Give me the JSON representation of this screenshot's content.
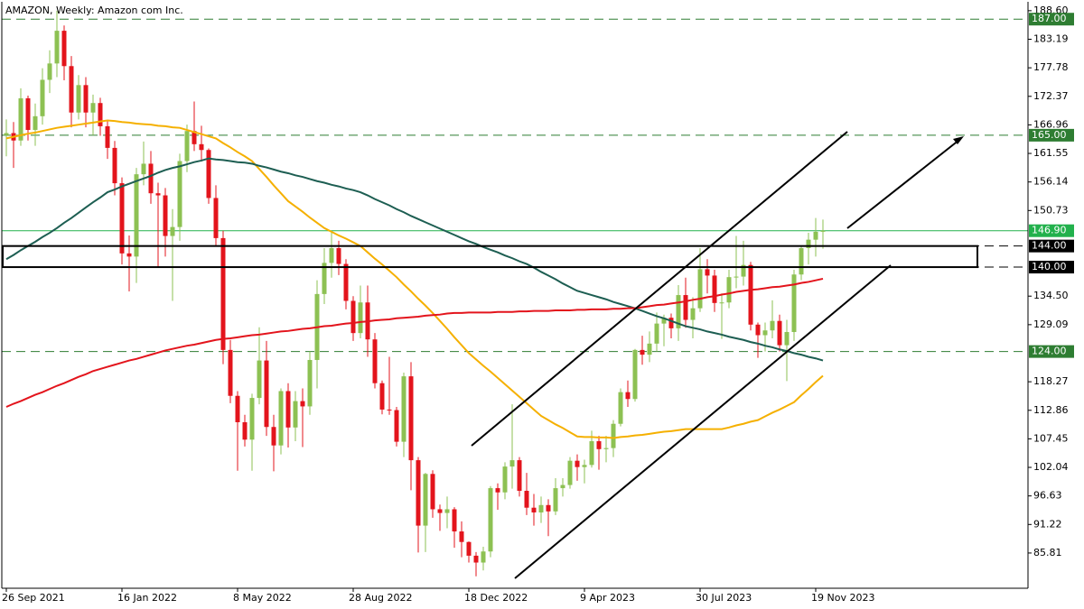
{
  "chart_data": {
    "type": "candlestick",
    "title": "AMAZON, Weekly:  Amazon com Inc.",
    "categories": [
      "26 Sep 2021",
      null,
      null,
      null,
      null,
      null,
      null,
      null,
      null,
      null,
      null,
      null,
      null,
      null,
      null,
      null,
      "16 Jan 2022",
      null,
      null,
      null,
      null,
      null,
      null,
      null,
      null,
      null,
      null,
      null,
      null,
      null,
      null,
      null,
      "8 May 2022",
      null,
      null,
      null,
      null,
      null,
      null,
      null,
      null,
      null,
      null,
      null,
      null,
      null,
      null,
      null,
      "28 Aug 2022",
      null,
      null,
      null,
      null,
      null,
      null,
      null,
      null,
      null,
      null,
      null,
      null,
      null,
      null,
      null,
      "18 Dec 2022",
      null,
      null,
      null,
      null,
      null,
      null,
      null,
      null,
      null,
      null,
      null,
      null,
      null,
      null,
      null,
      "9 Apr 2023",
      null,
      null,
      null,
      null,
      null,
      null,
      null,
      null,
      null,
      null,
      null,
      null,
      null,
      null,
      null,
      "30 Jul 2023",
      null,
      null,
      null,
      null,
      null,
      null,
      null,
      null,
      null,
      null,
      null,
      null,
      null,
      null,
      null,
      "19 Nov 2023",
      null
    ],
    "open": [
      165.0,
      165.4,
      164.0,
      172.0,
      166.0,
      168.6,
      175.5,
      178.6,
      184.8,
      178.1,
      169.3,
      174.5,
      169.3,
      171.1,
      166.7,
      162.6,
      155.9,
      142.6,
      142.0,
      157.6,
      159.6,
      154.0,
      153.6,
      145.9,
      147.6,
      160.1,
      165.8,
      163.3,
      162.2,
      153.1,
      145.5,
      124.3,
      115.6,
      110.6,
      107.3,
      115.2,
      122.3,
      109.7,
      106.2,
      116.5,
      109.6,
      114.6,
      113.6,
      122.4,
      134.9,
      140.8,
      143.6,
      140.6,
      133.6,
      127.5,
      133.3,
      126.3,
      118.0,
      113.0,
      112.9,
      106.9,
      119.3,
      103.4,
      91.0,
      100.8,
      94.1,
      93.4,
      94.1,
      89.9,
      87.9,
      85.3,
      84.0,
      86.1,
      98.1,
      97.3,
      102.2,
      103.4,
      97.6,
      94.4,
      93.5,
      94.9,
      93.7,
      98.1,
      98.7,
      103.3,
      102.1,
      102.5,
      107.0,
      105.5,
      105.7,
      110.3,
      116.3,
      115.0,
      124.3,
      123.4,
      125.5,
      129.3,
      130.4,
      128.4,
      134.7,
      130.0,
      132.2,
      139.6,
      138.4,
      133.2,
      133.3,
      138.1,
      138.2,
      140.4,
      129.1,
      127.1,
      128.0,
      129.8,
      125.2,
      127.7,
      138.6,
      143.6,
      145.2,
      146.7
    ],
    "high": [
      168.0,
      167.5,
      173.9,
      172.5,
      171.0,
      177.7,
      181.1,
      188.6,
      185.8,
      180.0,
      176.4,
      176.0,
      172.7,
      172.1,
      167.8,
      163.9,
      157.0,
      146.0,
      158.8,
      163.8,
      162.0,
      156.0,
      155.0,
      151.0,
      161.5,
      167.0,
      171.4,
      166.8,
      162.5,
      155.5,
      146.9,
      126.2,
      116.5,
      112.0,
      116.0,
      128.6,
      126.0,
      112.0,
      117.0,
      118.0,
      116.5,
      117.0,
      124.0,
      137.5,
      143.6,
      146.6,
      145.0,
      141.5,
      134.5,
      136.5,
      136.5,
      127.5,
      118.5,
      123.0,
      113.5,
      120.0,
      122.0,
      104.0,
      101.0,
      101.5,
      95.0,
      96.5,
      94.5,
      91.8,
      88.0,
      86.0,
      87.0,
      98.5,
      99.0,
      103.0,
      114.0,
      104.0,
      101.0,
      97.0,
      96.5,
      96.0,
      100.0,
      100.0,
      104.0,
      104.5,
      103.5,
      109.0,
      108.0,
      108.0,
      111.0,
      117.0,
      118.5,
      124.5,
      127.0,
      127.8,
      131.4,
      131.0,
      131.2,
      136.6,
      138.0,
      134.3,
      143.6,
      141.5,
      139.5,
      135.0,
      139.5,
      145.9,
      145.0,
      141.0,
      129.5,
      129.5,
      133.7,
      131.0,
      130.0,
      139.5,
      144.0,
      146.5,
      149.3,
      149.0
    ],
    "low": [
      161.0,
      158.8,
      163.0,
      164.0,
      163.0,
      167.0,
      173.0,
      176.0,
      175.4,
      166.5,
      168.0,
      166.5,
      165.0,
      164.9,
      160.5,
      153.6,
      140.5,
      135.4,
      137.0,
      155.5,
      152.0,
      140.0,
      142.0,
      133.6,
      145.0,
      158.0,
      162.0,
      160.0,
      152.0,
      144.0,
      121.6,
      114.2,
      101.4,
      106.0,
      101.4,
      114.0,
      108.0,
      101.3,
      104.5,
      105.8,
      107.0,
      105.9,
      112.0,
      117.0,
      133.0,
      138.0,
      138.5,
      132.0,
      126.0,
      126.5,
      123.0,
      117.0,
      112.1,
      112.0,
      106.0,
      104.0,
      97.7,
      85.9,
      86.0,
      92.5,
      90.0,
      90.5,
      86.8,
      85.0,
      84.0,
      81.4,
      82.5,
      85.0,
      94.0,
      96.0,
      98.0,
      96.5,
      93.0,
      91.0,
      91.5,
      89.0,
      93.0,
      96.5,
      98.0,
      99.5,
      99.0,
      102.0,
      101.6,
      103.0,
      104.0,
      109.8,
      113.5,
      114.5,
      121.5,
      122.0,
      124.0,
      125.0,
      126.5,
      126.0,
      128.5,
      126.5,
      131.5,
      135.0,
      131.5,
      126.4,
      132.2,
      136.0,
      136.5,
      128.0,
      122.8,
      124.0,
      126.5,
      124.0,
      118.4,
      126.0,
      137.5,
      140.5,
      142.0,
      143.5
    ],
    "close": [
      165.4,
      164.0,
      172.0,
      166.0,
      168.6,
      175.5,
      178.6,
      184.8,
      178.1,
      169.3,
      174.5,
      169.3,
      171.1,
      166.7,
      162.6,
      155.9,
      142.6,
      142.0,
      157.6,
      159.6,
      154.0,
      153.6,
      145.9,
      147.6,
      160.1,
      165.8,
      163.3,
      162.2,
      153.1,
      145.5,
      124.3,
      115.6,
      110.6,
      107.3,
      115.2,
      122.3,
      109.7,
      106.2,
      116.5,
      109.6,
      114.6,
      113.6,
      122.4,
      134.9,
      140.8,
      143.6,
      140.6,
      133.6,
      127.5,
      133.3,
      126.3,
      118.0,
      113.0,
      112.9,
      106.9,
      119.3,
      103.4,
      91.0,
      100.8,
      94.1,
      93.4,
      94.1,
      89.9,
      87.9,
      85.3,
      84.0,
      86.1,
      98.1,
      97.3,
      102.2,
      103.4,
      97.6,
      94.4,
      93.5,
      94.9,
      93.7,
      98.1,
      98.7,
      103.3,
      102.1,
      102.5,
      107.0,
      105.5,
      105.7,
      110.3,
      116.3,
      115.0,
      124.3,
      123.4,
      125.5,
      129.3,
      130.4,
      128.4,
      134.7,
      130.0,
      132.2,
      139.6,
      138.4,
      133.2,
      133.3,
      138.1,
      138.2,
      140.4,
      129.1,
      127.1,
      128.0,
      129.8,
      125.2,
      127.7,
      138.6,
      143.6,
      145.2,
      146.7,
      146.9
    ],
    "up_color": "#8dc153",
    "down_color": "#e3141c",
    "lines": [
      {
        "color": "#f5b000",
        "values": [
          164.4,
          164.7,
          165.0,
          165.3,
          165.5,
          165.8,
          166.1,
          166.4,
          166.6,
          166.8,
          167.0,
          167.2,
          167.4,
          167.6,
          167.8,
          167.7,
          167.5,
          167.4,
          167.2,
          167.1,
          167.0,
          166.8,
          166.7,
          166.5,
          166.4,
          166.0,
          165.6,
          165.2,
          164.8,
          164.4,
          163.5,
          162.7,
          161.8,
          161.0,
          160.1,
          158.6,
          157.1,
          155.5,
          154.0,
          152.5,
          151.5,
          150.5,
          149.4,
          148.4,
          147.4,
          146.7,
          146.0,
          145.4,
          144.7,
          144.0,
          142.8,
          141.6,
          140.5,
          139.3,
          138.1,
          136.7,
          135.4,
          134.0,
          132.7,
          131.3,
          129.8,
          128.3,
          126.7,
          125.2,
          123.7,
          122.5,
          121.3,
          120.2,
          119.0,
          117.8,
          116.6,
          115.4,
          114.2,
          113.0,
          111.8,
          111.0,
          110.2,
          109.5,
          108.7,
          107.9,
          107.8,
          107.8,
          107.7,
          107.7,
          107.6,
          107.8,
          107.9,
          108.1,
          108.2,
          108.4,
          108.6,
          108.8,
          108.9,
          109.1,
          109.3,
          109.3,
          109.3,
          109.3,
          109.3,
          109.3,
          109.6,
          110.0,
          110.3,
          110.7,
          111.0,
          111.7,
          112.4,
          113.0,
          113.7,
          114.4,
          115.7,
          116.9,
          118.2,
          119.4
        ]
      },
      {
        "color": "#1d5e52",
        "values": [
          141.5,
          142.3,
          143.2,
          144.0,
          144.8,
          145.7,
          146.5,
          147.4,
          148.4,
          149.3,
          150.3,
          151.3,
          152.3,
          153.2,
          154.2,
          154.7,
          155.3,
          155.8,
          156.3,
          156.8,
          157.3,
          157.9,
          158.4,
          158.8,
          159.1,
          159.5,
          159.9,
          160.2,
          160.6,
          160.4,
          160.3,
          160.1,
          159.9,
          159.8,
          159.6,
          159.2,
          158.9,
          158.5,
          158.1,
          157.8,
          157.4,
          157.1,
          156.7,
          156.3,
          156.0,
          155.6,
          155.3,
          154.9,
          154.6,
          154.2,
          153.6,
          152.9,
          152.3,
          151.7,
          151.0,
          150.4,
          149.7,
          149.1,
          148.5,
          147.9,
          147.3,
          146.7,
          146.1,
          145.5,
          144.9,
          144.4,
          143.8,
          143.3,
          142.8,
          142.2,
          141.7,
          141.1,
          140.6,
          139.9,
          139.1,
          138.4,
          137.7,
          136.9,
          136.2,
          135.5,
          135.1,
          134.7,
          134.3,
          133.9,
          133.4,
          133.0,
          132.6,
          132.2,
          131.7,
          131.2,
          130.7,
          130.3,
          129.8,
          129.3,
          128.8,
          128.5,
          128.2,
          127.8,
          127.5,
          127.2,
          126.8,
          126.5,
          126.2,
          125.8,
          125.5,
          125.1,
          124.8,
          124.4,
          124.1,
          123.7,
          123.4,
          123.0,
          122.7,
          122.3
        ]
      },
      {
        "color": "#e3141c",
        "values": [
          113.5,
          114.1,
          114.6,
          115.2,
          115.8,
          116.3,
          116.9,
          117.5,
          118.0,
          118.6,
          119.2,
          119.7,
          120.3,
          120.7,
          121.1,
          121.5,
          121.9,
          122.3,
          122.6,
          123.0,
          123.4,
          123.8,
          124.2,
          124.5,
          124.8,
          125.1,
          125.3,
          125.6,
          125.9,
          126.2,
          126.4,
          126.5,
          126.7,
          126.9,
          127.1,
          127.2,
          127.4,
          127.6,
          127.8,
          127.9,
          128.1,
          128.3,
          128.4,
          128.6,
          128.8,
          128.9,
          129.1,
          129.3,
          129.4,
          129.6,
          129.7,
          129.9,
          130.0,
          130.1,
          130.3,
          130.4,
          130.5,
          130.6,
          130.8,
          130.9,
          131.0,
          131.2,
          131.3,
          131.3,
          131.4,
          131.4,
          131.4,
          131.4,
          131.5,
          131.5,
          131.5,
          131.6,
          131.6,
          131.7,
          131.7,
          131.7,
          131.8,
          131.8,
          131.8,
          131.9,
          131.9,
          132.0,
          132.0,
          132.0,
          132.1,
          132.1,
          132.2,
          132.2,
          132.4,
          132.6,
          132.8,
          132.9,
          133.1,
          133.3,
          133.5,
          133.8,
          134.0,
          134.3,
          134.5,
          134.8,
          135.0,
          135.3,
          135.5,
          135.7,
          135.8,
          136.0,
          136.2,
          136.3,
          136.5,
          136.7,
          137.0,
          137.2,
          137.5,
          137.8
        ]
      }
    ],
    "ylim": [
      79.13,
      190.63
    ],
    "yticks": [
      {
        "value": 188.6,
        "label": "188.60"
      },
      {
        "value": 183.19,
        "label": "183.19"
      },
      {
        "value": 177.78,
        "label": "177.78"
      },
      {
        "value": 172.37,
        "label": "172.37"
      },
      {
        "value": 166.96,
        "label": "166.96"
      },
      {
        "value": 161.55,
        "label": "161.55"
      },
      {
        "value": 156.14,
        "label": "156.14"
      },
      {
        "value": 150.73,
        "label": "150.73"
      },
      {
        "value": 134.5,
        "label": "134.50"
      },
      {
        "value": 129.09,
        "label": "129.09"
      },
      {
        "value": 118.27,
        "label": "118.27"
      },
      {
        "value": 112.86,
        "label": "112.86"
      },
      {
        "value": 107.45,
        "label": "107.45"
      },
      {
        "value": 102.04,
        "label": "102.04"
      },
      {
        "value": 96.63,
        "label": "96.63"
      },
      {
        "value": 91.22,
        "label": "91.22"
      },
      {
        "value": 85.81,
        "label": "85.81"
      }
    ],
    "levels": [
      {
        "value": 187,
        "label": "187.00",
        "color": "#2e7d32",
        "dashed": true
      },
      {
        "value": 165,
        "label": "165.00",
        "color": "#2e7d32",
        "dashed": true
      },
      {
        "value": 146.9,
        "label": "146.90",
        "color": "#22b14c",
        "dashed": false
      },
      {
        "value": 144,
        "label": "144.00",
        "color": "#000000",
        "dashed": true
      },
      {
        "value": 140,
        "label": "140.00",
        "color": "#000000",
        "dashed": true
      },
      {
        "value": 124,
        "label": "124.00",
        "color": "#2e7d32",
        "dashed": true
      }
    ],
    "grid": false
  }
}
